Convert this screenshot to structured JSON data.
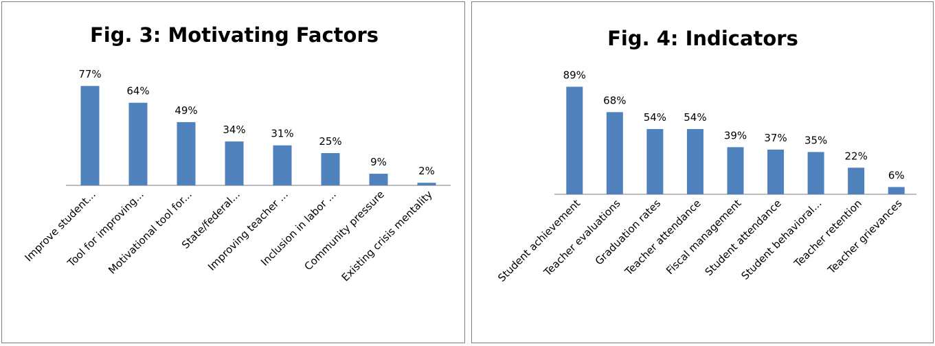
{
  "colors": {
    "bar": "#4f81bd",
    "axis": "#a6a6a6",
    "border": "#7f7f7f",
    "text": "#000000"
  },
  "chart_data": [
    {
      "type": "bar",
      "title": "Fig. 3: Motivating  Factors",
      "categories": [
        "Improve student...",
        "Tool for improving...",
        "Motivational tool for...",
        "State/federal...",
        "Improving teacher ...",
        "Inclusion in labor ...",
        "Community pressure",
        "Existing crisis mentality"
      ],
      "values": [
        77,
        64,
        49,
        34,
        31,
        25,
        9,
        2
      ],
      "value_labels": [
        "77%",
        "64%",
        "49%",
        "34%",
        "31%",
        "25%",
        "9%",
        "2%"
      ],
      "unit": "%",
      "ylim": [
        0,
        100
      ],
      "grid": false,
      "legend": "none"
    },
    {
      "type": "bar",
      "title": "Fig. 4: Indicators",
      "categories": [
        "Student achievement",
        "Teacher evaluations",
        "Graduation rates",
        "Teacher attendance",
        "Fiscal management",
        "Student attendance",
        "Student behavioral...",
        "Teacher retention",
        "Teacher grievances"
      ],
      "values": [
        89,
        68,
        54,
        54,
        39,
        37,
        35,
        22,
        6
      ],
      "value_labels": [
        "89%",
        "68%",
        "54%",
        "54%",
        "39%",
        "37%",
        "35%",
        "22%",
        "6%"
      ],
      "unit": "%",
      "ylim": [
        0,
        100
      ],
      "grid": false,
      "legend": "none"
    }
  ]
}
